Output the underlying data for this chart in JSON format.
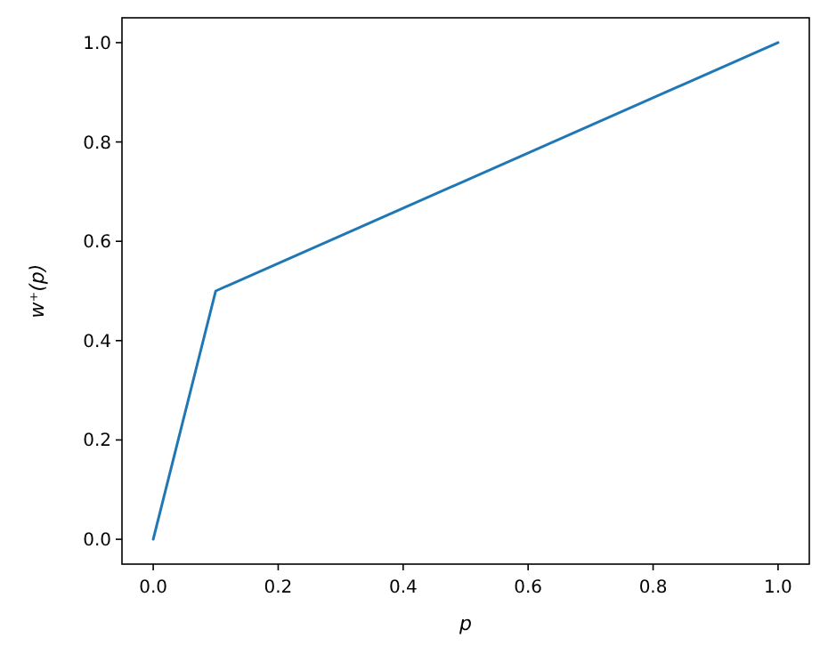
{
  "chart_data": {
    "type": "line",
    "xlabel": "p",
    "ylabel": "w⁺(p)",
    "x": [
      0,
      0.1,
      1
    ],
    "series": [
      {
        "color": "#1f77b4",
        "values": [
          0,
          0.5,
          1
        ]
      }
    ],
    "xlim": [
      -0.05,
      1.05
    ],
    "ylim": [
      -0.05,
      1.05
    ],
    "xticks": [
      {
        "value": 0,
        "label": "0.0"
      },
      {
        "value": 0.2,
        "label": "0.2"
      },
      {
        "value": 0.4,
        "label": "0.4"
      },
      {
        "value": 0.6,
        "label": "0.6"
      },
      {
        "value": 0.8,
        "label": "0.8"
      },
      {
        "value": 1,
        "label": "1.0"
      }
    ],
    "yticks": [
      {
        "value": 0,
        "label": "0.0"
      },
      {
        "value": 0.2,
        "label": "0.2"
      },
      {
        "value": 0.4,
        "label": "0.4"
      },
      {
        "value": 0.6,
        "label": "0.6"
      },
      {
        "value": 0.8,
        "label": "0.8"
      },
      {
        "value": 1,
        "label": "1.0"
      }
    ],
    "grid": false,
    "marker": "none",
    "line_style": "solid"
  }
}
